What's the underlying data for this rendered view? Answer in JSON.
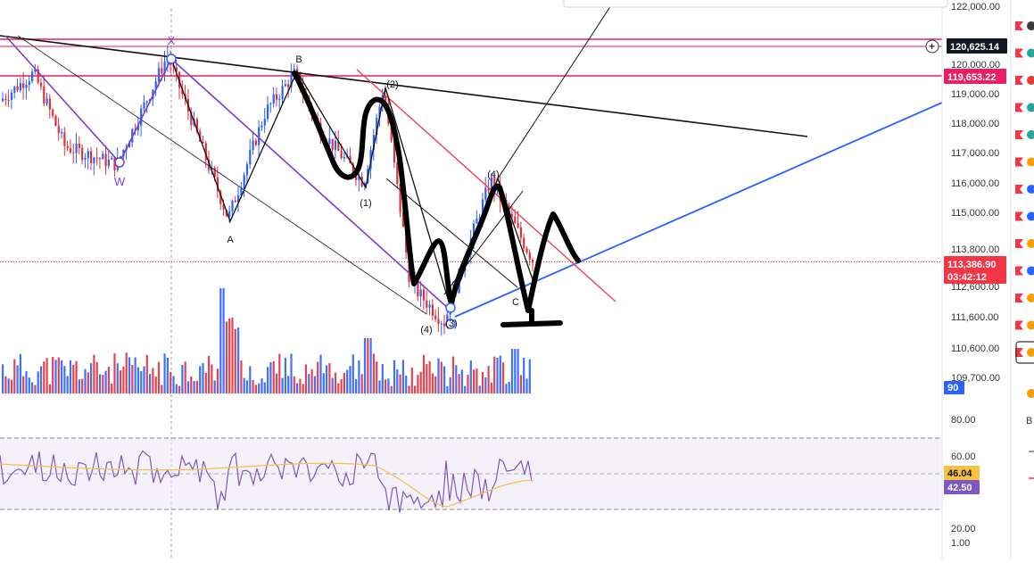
{
  "chart_data": {
    "type": "candlestick",
    "price_axis": {
      "ticks": [
        "120,000.00",
        "119,000.00",
        "118,000.00",
        "117,000.00",
        "116,000.00",
        "115,000.00",
        "113,800.00",
        "112,600.00",
        "111,600.00",
        "110,600.00",
        "109,700.00"
      ],
      "tick_values": [
        120000,
        119000,
        118000,
        117000,
        116000,
        115000,
        113800,
        112600,
        111600,
        110600,
        109700
      ],
      "top_partial": "122,000.00"
    },
    "price_labels": {
      "cursor": "120,625.14",
      "resistance": "119,653.22",
      "current_price": "113,386.90",
      "countdown": "03:42:12",
      "volume": "90"
    },
    "levels": {
      "horizontal_lines": [
        120625.14,
        119653.22
      ],
      "current_price": 113386.9
    },
    "wave_labels": [
      "W",
      "X",
      "A",
      "B",
      "(1)",
      "(2)",
      "(3)",
      "(4)",
      "(4)",
      "C"
    ],
    "rsi_panel": {
      "ticks": [
        "80.00",
        "60.00",
        "20.00",
        "1.00"
      ],
      "tick_values": [
        80,
        60,
        20,
        1
      ],
      "overbought": 70,
      "oversold": 30,
      "ma_value": "46.04",
      "rsi_value": "42.50"
    },
    "colors": {
      "bull": "#2962ff",
      "bear": "#e0303e",
      "level_line": "#e91e63",
      "current_price": "#f23645",
      "trend_blue": "#2962ff",
      "rsi_line": "#7e57c2",
      "rsi_ma": "#f5c242",
      "purple_channel": "#7e3fc7",
      "red_channel": "#f04050"
    }
  },
  "toolbar": {
    "items": [
      {
        "icon": "flag-icon",
        "dot": "#3a3a3a"
      },
      {
        "icon": "flag-icon",
        "dot": "#26a69a"
      },
      {
        "icon": "flag-icon",
        "dot": "#e53935"
      },
      {
        "icon": "flag-icon",
        "dot": "#26a69a"
      },
      {
        "icon": "flag-icon",
        "dot": "#26a69a"
      },
      {
        "icon": "flag-icon",
        "dot": "#f59f00"
      },
      {
        "icon": "flag-icon",
        "dot": "#2962ff"
      },
      {
        "icon": "flag-icon",
        "dot": "#2962ff"
      },
      {
        "icon": "flag-icon",
        "dot": "#f59f00"
      },
      {
        "icon": "flag-icon",
        "dot": "#2962ff"
      },
      {
        "icon": "flag-icon",
        "dot": "#f59f00"
      },
      {
        "icon": "flag-icon",
        "dot": "#f59f00"
      },
      {
        "icon": "flag-icon",
        "dot": "#f59f00"
      }
    ],
    "partial_label": "B"
  }
}
